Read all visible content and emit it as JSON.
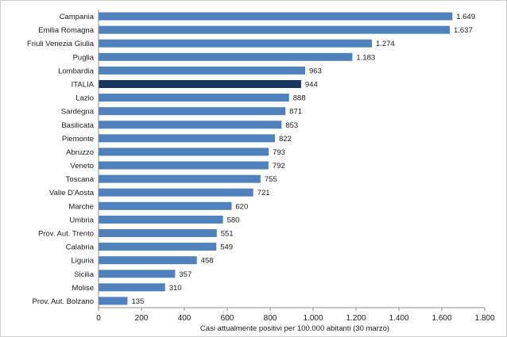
{
  "chart_data": {
    "type": "bar",
    "orientation": "horizontal",
    "xlabel": "Casi attualmente positivi per 100.000 abitanti (30 marzo)",
    "xlim": [
      0,
      1800
    ],
    "xticks": [
      0,
      200,
      400,
      600,
      800,
      1000,
      1200,
      1400,
      1600,
      1800
    ],
    "xtick_labels": [
      "0",
      "200",
      "400",
      "600",
      "800",
      "1.000",
      "1.200",
      "1.400",
      "1.600",
      "1.800"
    ],
    "grid": false,
    "legend": "none",
    "colors": {
      "default": "#4f81bd",
      "highlight": "#17375e"
    },
    "highlight_category": "ITALIA",
    "categories": [
      "Campania",
      "Emilia Romagna",
      "Friuli Venezia Giulia",
      "Puglia",
      "Lombardia",
      "ITALIA",
      "Lazio",
      "Sardegna",
      "Basilicata",
      "Piemonte",
      "Abruzzo",
      "Veneto",
      "Toscana",
      "Valle D'Aosta",
      "Marche",
      "Umbria",
      "Prov. Aut. Trento",
      "Calabria",
      "Liguria",
      "Sicilia",
      "Molise",
      "Prov. Aut. Bolzano"
    ],
    "values": [
      1649,
      1637,
      1274,
      1183,
      963,
      944,
      888,
      871,
      853,
      822,
      793,
      792,
      755,
      721,
      620,
      580,
      551,
      549,
      458,
      357,
      310,
      135
    ],
    "value_labels": [
      "1.649",
      "1.637",
      "1.274",
      "1.183",
      "963",
      "944",
      "888",
      "871",
      "853",
      "822",
      "793",
      "792",
      "755",
      "721",
      "620",
      "580",
      "551",
      "549",
      "458",
      "357",
      "310",
      "135"
    ]
  }
}
